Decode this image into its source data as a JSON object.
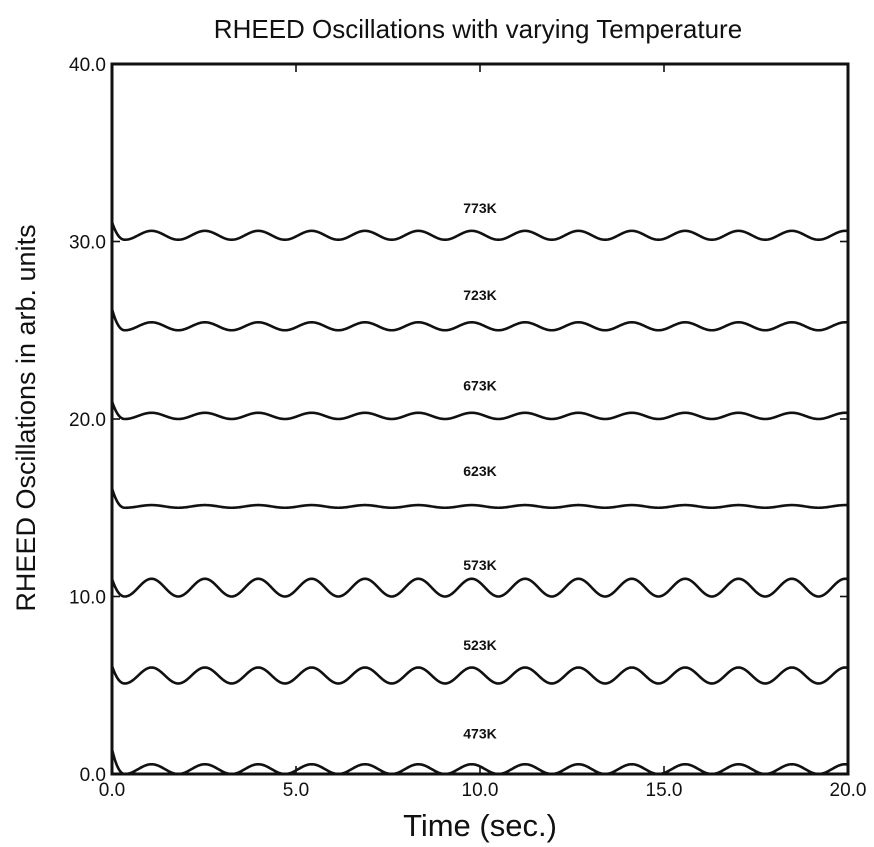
{
  "chart_data": {
    "type": "line",
    "title": "RHEED Oscillations with varying Temperature",
    "xlabel": "Time (sec.)",
    "ylabel": "RHEED Oscillations in arb. units",
    "xlim": [
      0,
      20
    ],
    "ylim": [
      0,
      40
    ],
    "xticks": [
      "0.0",
      "5.0",
      "10.0",
      "15.0",
      "20.0"
    ],
    "xtick_values": [
      0,
      5,
      10,
      15,
      20
    ],
    "yticks": [
      "0.0",
      "10.0",
      "20.0",
      "30.0",
      "40.0"
    ],
    "ytick_values": [
      0,
      10,
      20,
      30,
      40
    ],
    "grid": false,
    "oscillation_period_sec": 1.45,
    "series": [
      {
        "label": "473K",
        "baseline": 0.0,
        "start_peak": 1.4,
        "amplitude": 0.55,
        "label_pos": [
          10.0,
          2.0
        ]
      },
      {
        "label": "523K",
        "baseline": 5.1,
        "start_peak": 6.1,
        "amplitude": 0.9,
        "label_pos": [
          10.0,
          7.0
        ]
      },
      {
        "label": "573K",
        "baseline": 10.0,
        "start_peak": 11.0,
        "amplitude": 1.0,
        "label_pos": [
          10.0,
          11.5
        ]
      },
      {
        "label": "623K",
        "baseline": 15.0,
        "start_peak": 16.1,
        "amplitude": 0.15,
        "label_pos": [
          10.0,
          16.8
        ]
      },
      {
        "label": "673K",
        "baseline": 20.0,
        "start_peak": 21.0,
        "amplitude": 0.35,
        "label_pos": [
          10.0,
          21.6
        ]
      },
      {
        "label": "723K",
        "baseline": 25.0,
        "start_peak": 26.2,
        "amplitude": 0.45,
        "label_pos": [
          10.0,
          26.7
        ]
      },
      {
        "label": "773K",
        "baseline": 30.1,
        "start_peak": 31.1,
        "amplitude": 0.5,
        "label_pos": [
          10.0,
          31.6
        ]
      }
    ]
  }
}
